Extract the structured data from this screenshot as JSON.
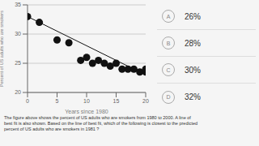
{
  "chart_data": {
    "type": "scatter",
    "xlabel": "Years since 1980",
    "ylabel": "Percent of US adults who are smokers",
    "series": [
      {
        "type": "scatter",
        "x": [
          0,
          2,
          5,
          7,
          9,
          10,
          11,
          12,
          13,
          14,
          15,
          16,
          17,
          18,
          19,
          20,
          20
        ],
        "values": [
          33,
          32,
          29,
          28.5,
          25.5,
          26,
          25,
          25.5,
          25,
          24.5,
          25,
          24,
          24,
          24,
          23.5,
          23.5,
          24
        ],
        "color": "#111111"
      },
      {
        "type": "line",
        "x": [
          0,
          20
        ],
        "values": [
          33,
          23
        ],
        "color": "#111111"
      }
    ],
    "xlim": [
      0,
      20
    ],
    "ylim": [
      20,
      35
    ],
    "xticks": [
      0,
      5,
      10,
      15,
      20
    ],
    "yticks": [
      20,
      25,
      30,
      35
    ],
    "grid": true,
    "choices": [
      {
        "label": "A",
        "text": "26%"
      },
      {
        "label": "B",
        "text": "28%"
      },
      {
        "label": "C",
        "text": "30%"
      },
      {
        "label": "D",
        "text": "32%"
      }
    ],
    "body_text": [
      "The figure above shows the percent of US adults who are smokers from 1980 to 2000. A line of",
      "best fit is also shown. Based on the line of best fit, which of the following is closest to the predicted",
      "percent of US adults who are smokers in 1981 ?"
    ]
  }
}
